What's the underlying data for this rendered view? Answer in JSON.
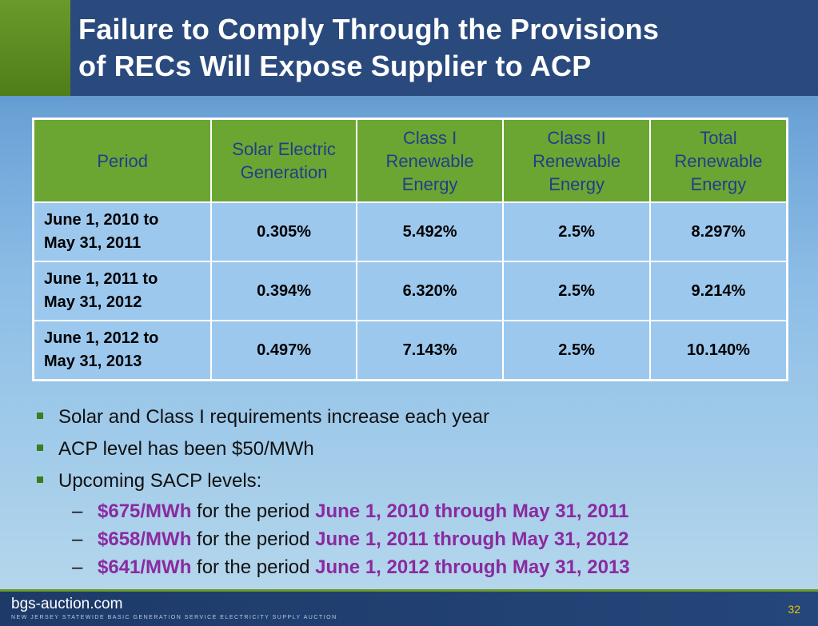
{
  "slide": {
    "title_line1": "Failure to Comply Through the Provisions",
    "title_line2": "of RECs Will Expose Supplier to ACP",
    "page_number": "32"
  },
  "table": {
    "headers": {
      "period": "Period",
      "solar_1": "Solar Electric",
      "solar_2": "Generation",
      "class1_1": "Class I",
      "class1_2": "Renewable",
      "class1_3": "Energy",
      "class2_1": "Class II",
      "class2_2": "Renewable",
      "class2_3": "Energy",
      "total_1": "Total",
      "total_2": "Renewable",
      "total_3": "Energy"
    },
    "rows": [
      {
        "period_1": "June 1, 2010 to",
        "period_2": "May 31, 2011",
        "solar": "0.305%",
        "class1": "5.492%",
        "class2": "2.5%",
        "total": "8.297%"
      },
      {
        "period_1": "June 1, 2011 to",
        "period_2": "May 31, 2012",
        "solar": "0.394%",
        "class1": "6.320%",
        "class2": "2.5%",
        "total": "9.214%"
      },
      {
        "period_1": "June 1, 2012 to",
        "period_2": "May 31, 2013",
        "solar": "0.497%",
        "class1": "7.143%",
        "class2": "2.5%",
        "total": "10.140%"
      }
    ]
  },
  "bullets": [
    "Solar and Class I requirements increase each year",
    "ACP level has been $50/MWh",
    "Upcoming SACP levels:"
  ],
  "sub_bullets": [
    {
      "price": "$675/MWh",
      "text": " for the period ",
      "period": "June 1, 2010 through May 31, 2011"
    },
    {
      "price": "$658/MWh",
      "text": " for the period ",
      "period": "June 1, 2011 through May 31, 2012"
    },
    {
      "price": "$641/MWh",
      "text": " for the period ",
      "period": "June 1, 2012 through May 31, 2013"
    }
  ],
  "footer": {
    "brand": "bgs-auction.com",
    "tagline": "NEW JERSEY STATEWIDE BASIC GENERATION SERVICE ELECTRICITY SUPPLY AUCTION"
  },
  "colors": {
    "header_bg": "#2a4a7e",
    "accent_green": "#6ba632",
    "table_header_text": "#1f3f8a",
    "cell_bg": "#9dc8ee",
    "highlight": "#8a2aa0",
    "page_number": "#f2c200"
  }
}
